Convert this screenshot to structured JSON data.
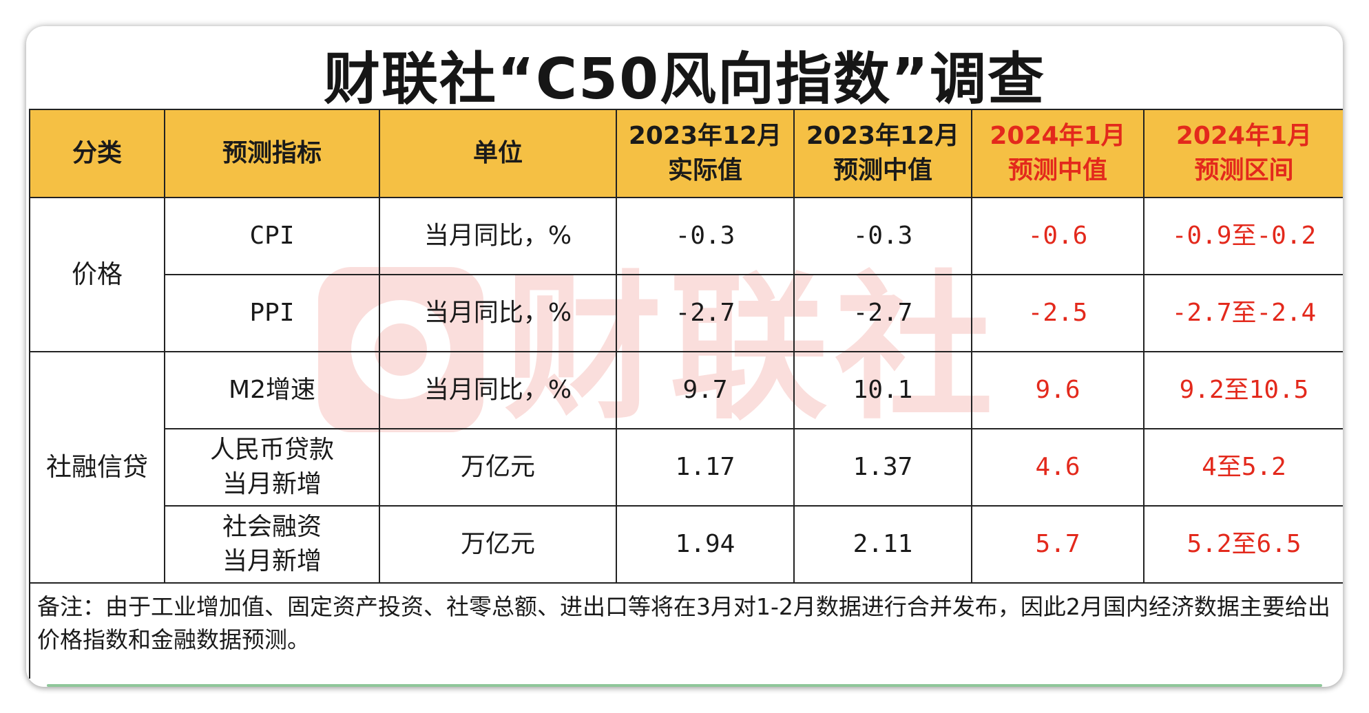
{
  "title": "财联社“C50风向指数”调查",
  "watermark_logo": "财联社",
  "colors": {
    "header_bg": "#f5c044",
    "forecast_red": "#e3291c",
    "border": "#222222"
  },
  "headers": [
    {
      "lines": [
        "分类"
      ]
    },
    {
      "lines": [
        "预测指标"
      ]
    },
    {
      "lines": [
        "单位"
      ]
    },
    {
      "lines": [
        "2023年12月",
        "实际值"
      ]
    },
    {
      "lines": [
        "2023年12月",
        "预测中值"
      ]
    },
    {
      "lines": [
        "2024年1月",
        "预测中值"
      ]
    },
    {
      "lines": [
        "2024年1月",
        "预测区间"
      ]
    }
  ],
  "groups": [
    {
      "category": "价格",
      "rows": [
        {
          "indicator": [
            "CPI"
          ],
          "unit": "当月同比，%",
          "actual_2023_12": "-0.3",
          "median_2023_12": "-0.3",
          "median_2024_01": "-0.6",
          "range_2024_01": "-0.9至-0.2"
        },
        {
          "indicator": [
            "PPI"
          ],
          "unit": "当月同比，%",
          "actual_2023_12": "-2.7",
          "median_2023_12": "-2.7",
          "median_2024_01": "-2.5",
          "range_2024_01": "-2.7至-2.4"
        }
      ]
    },
    {
      "category": "社融信贷",
      "rows": [
        {
          "indicator": [
            "M2增速"
          ],
          "unit": "当月同比，%",
          "actual_2023_12": "9.7",
          "median_2023_12": "10.1",
          "median_2024_01": "9.6",
          "range_2024_01": "9.2至10.5"
        },
        {
          "indicator": [
            "人民币贷款",
            "当月新增"
          ],
          "unit": "万亿元",
          "actual_2023_12": "1.17",
          "median_2023_12": "1.37",
          "median_2024_01": "4.6",
          "range_2024_01": "4至5.2"
        },
        {
          "indicator": [
            "社会融资",
            "当月新增"
          ],
          "unit": "万亿元",
          "actual_2023_12": "1.94",
          "median_2023_12": "2.11",
          "median_2024_01": "5.7",
          "range_2024_01": "5.2至6.5"
        }
      ]
    }
  ],
  "note": "备注：由于工业增加值、固定资产投资、社零总额、进出口等将在3月对1-2月数据进行合并发布，因此2月国内经济数据主要给出价格指数和金融数据预测。"
}
